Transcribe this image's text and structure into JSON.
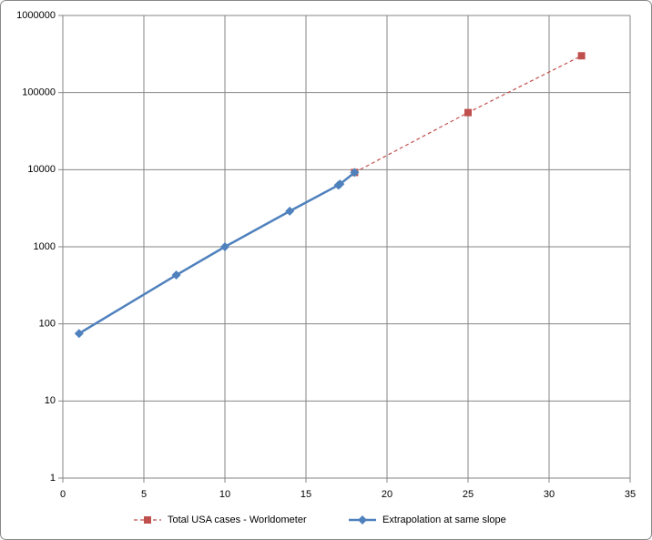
{
  "chart_data": {
    "type": "line",
    "series": [
      {
        "name": "Total USA cases - Worldometer",
        "color": "#c0504d",
        "line_style": "dashed",
        "marker": "square",
        "x": [
          18,
          25,
          32
        ],
        "values": [
          9200,
          55000,
          300000
        ]
      },
      {
        "name": "Extrapolation at same slope",
        "color": "#4f81bd",
        "line_style": "solid",
        "marker": "diamond",
        "x": [
          1,
          7,
          10,
          14,
          17,
          17.1,
          18
        ],
        "values": [
          75,
          430,
          1000,
          2900,
          6300,
          6500,
          9200
        ]
      }
    ],
    "xlim": [
      0,
      35
    ],
    "xticks": [
      0,
      5,
      10,
      15,
      20,
      25,
      30,
      35
    ],
    "ylim": [
      1,
      1000000
    ],
    "yticks": [
      1,
      10,
      100,
      1000,
      10000,
      100000,
      1000000
    ],
    "ylog": true,
    "grid": true,
    "legend": "bottom"
  }
}
